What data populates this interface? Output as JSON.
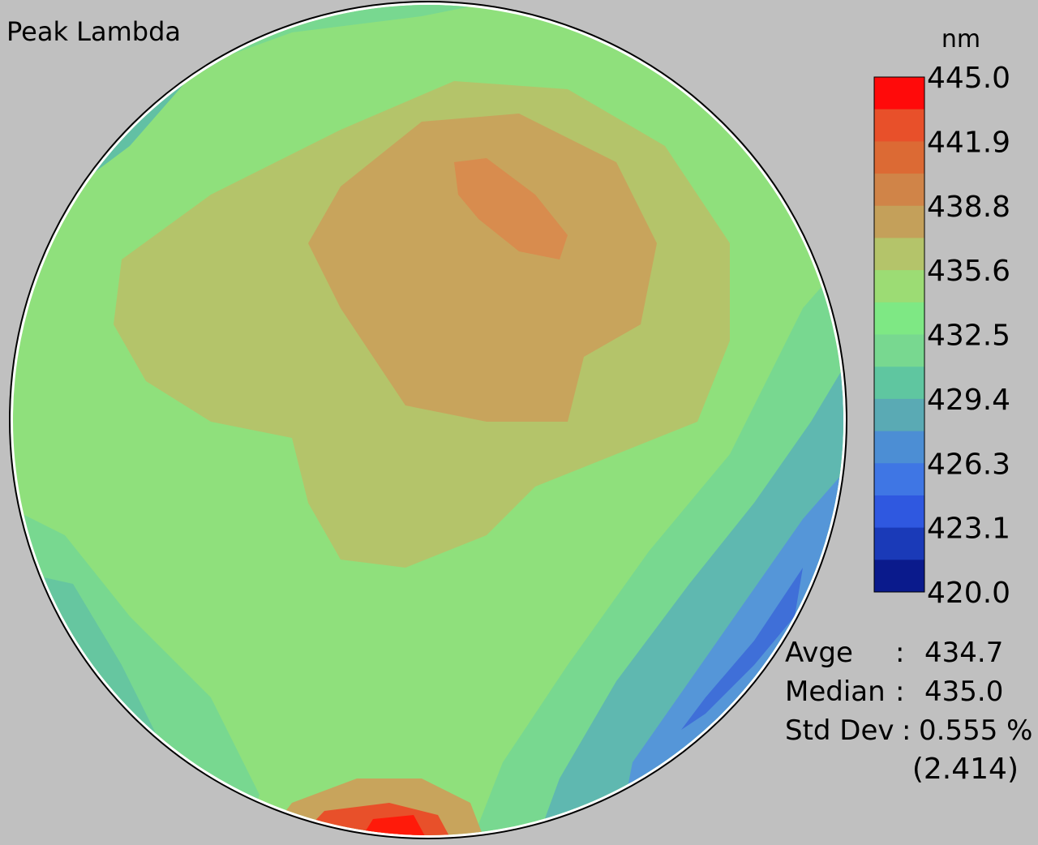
{
  "title": "Peak Lambda",
  "colorbar": {
    "unit": "nm",
    "labels": [
      "445.0",
      "441.9",
      "438.8",
      "435.6",
      "432.5",
      "429.4",
      "426.3",
      "423.1",
      "420.0"
    ]
  },
  "stats": [
    {
      "label": "Avge",
      "sep": ":",
      "value": "434.7"
    },
    {
      "label": "Median",
      "sep": ":",
      "value": "435.0"
    },
    {
      "label": "Std Dev",
      "sep": ":",
      "value": "0.555 %"
    }
  ],
  "std_dev_raw": "(2.414)"
}
